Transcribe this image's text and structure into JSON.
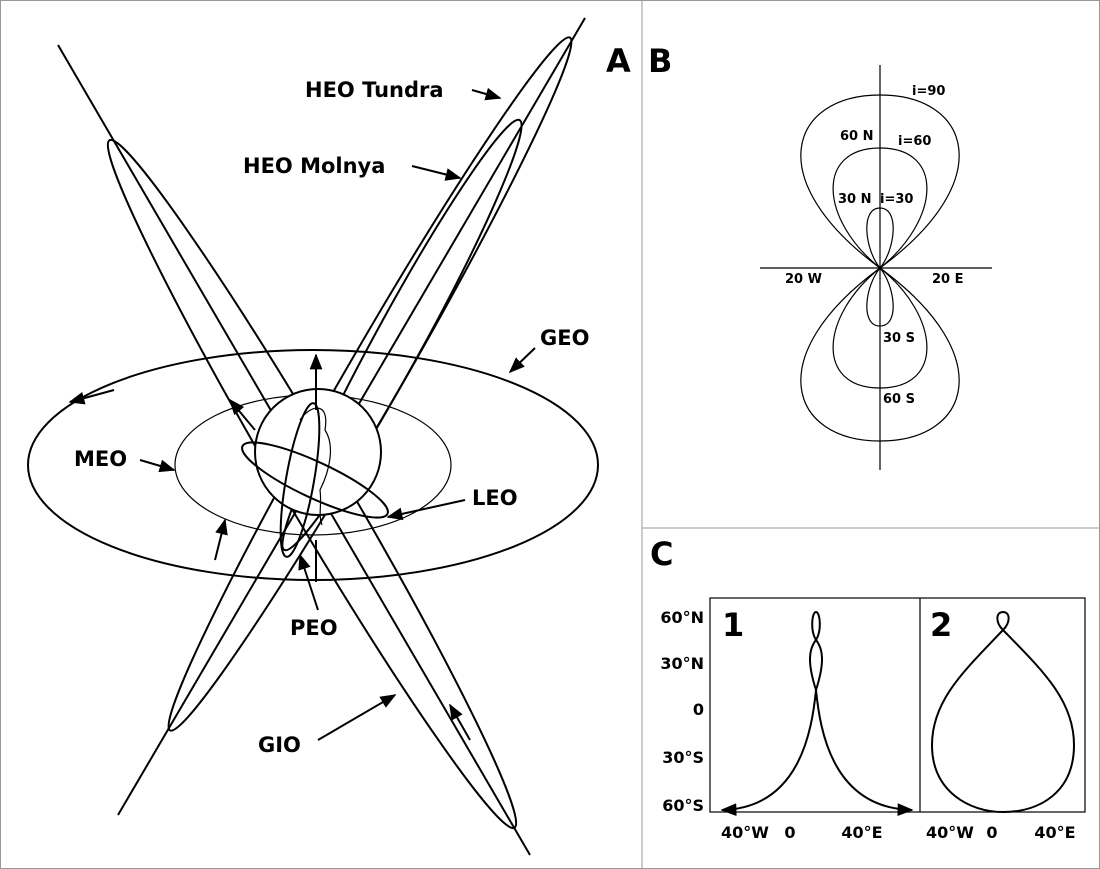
{
  "panels": {
    "a": {
      "letter": "A",
      "labels": [
        "HEO Tundra",
        "HEO Molnya",
        "GEO",
        "MEO",
        "LEO",
        "PEO",
        "GIO"
      ]
    },
    "b": {
      "letter": "B",
      "labels": [
        "i=90",
        "i=60",
        "i=30",
        "60 N",
        "30 N",
        "20 W",
        "20 E",
        "30 S",
        "60 S"
      ]
    },
    "c": {
      "letter": "C",
      "y_labels": [
        "60°N",
        "30°N",
        "0",
        "30°S",
        "60°S"
      ],
      "subpanels": [
        {
          "number": "1",
          "x_labels": [
            "40°W",
            "0",
            "40°E"
          ]
        },
        {
          "number": "2",
          "x_labels": [
            "40°W",
            "0",
            "40°E"
          ]
        }
      ]
    }
  }
}
